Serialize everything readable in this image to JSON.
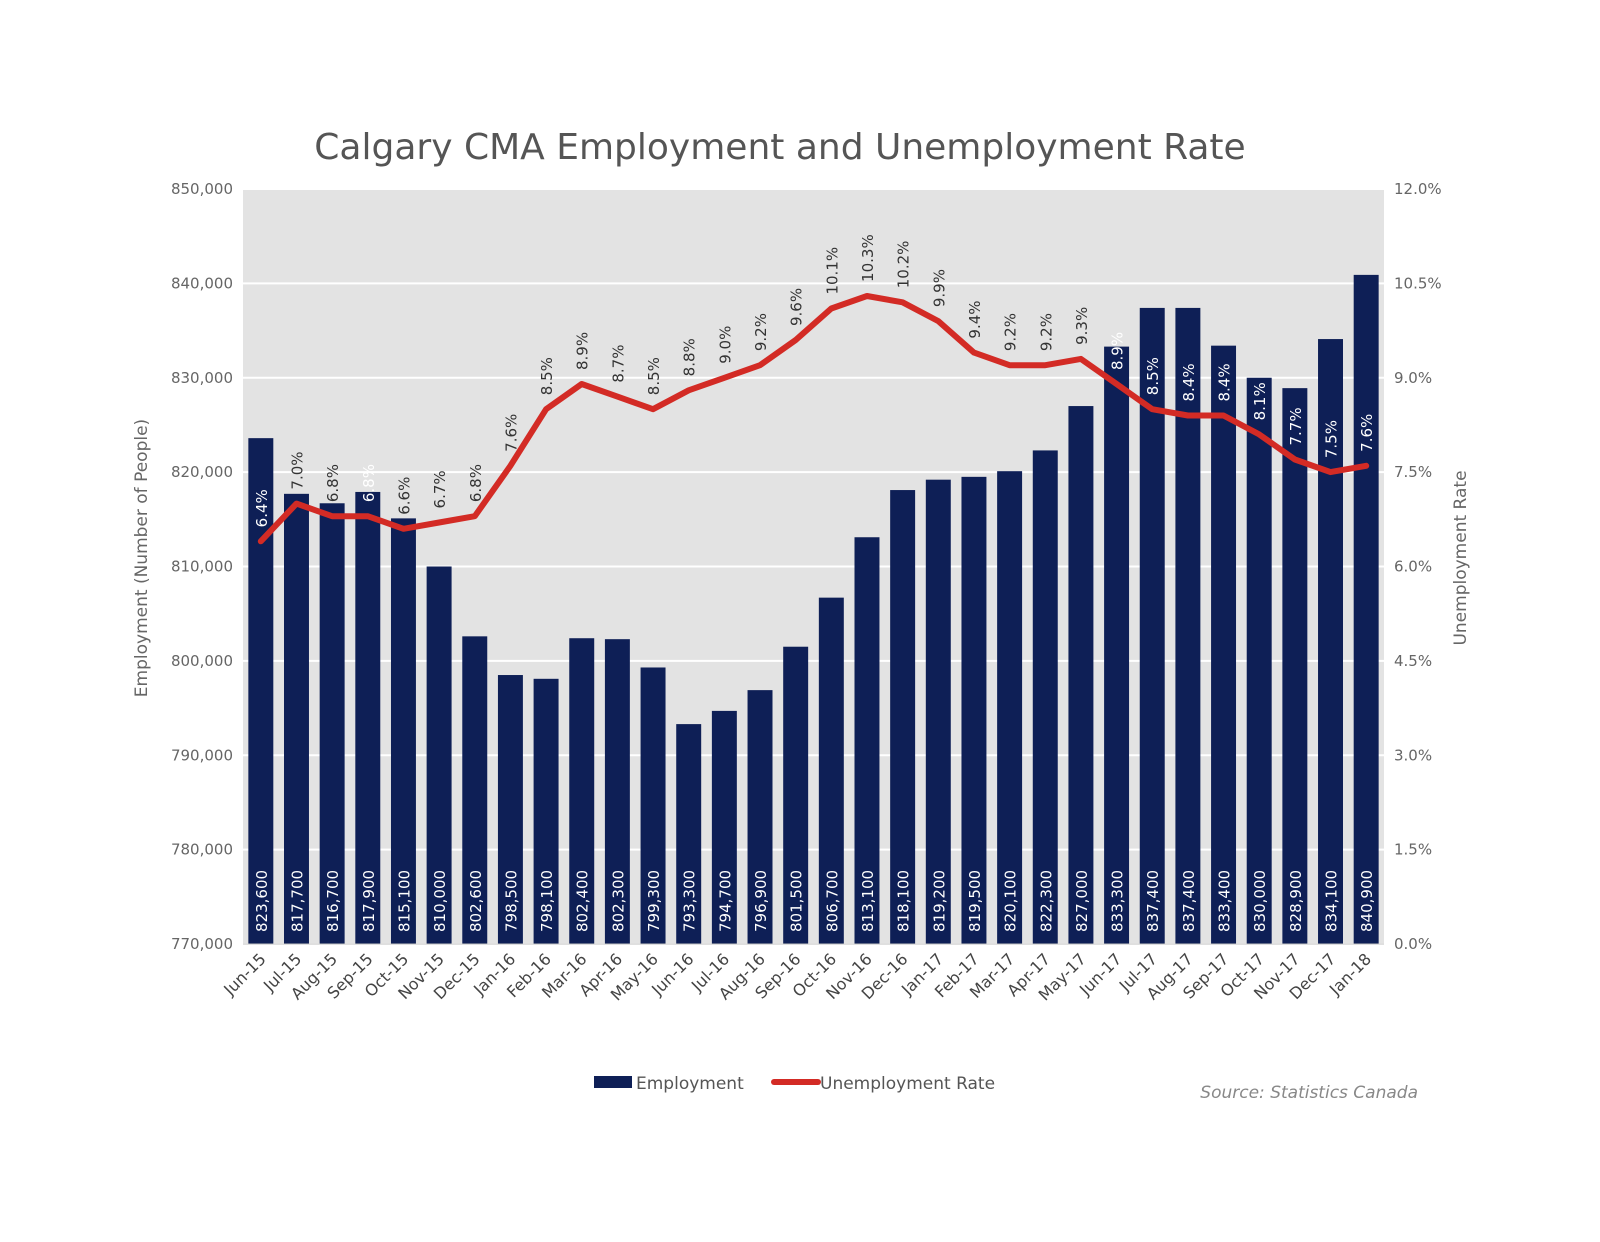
{
  "chart_data": {
    "type": "bar",
    "title": "Calgary CMA Employment and Unemployment Rate",
    "xlabel": "",
    "ylabel": "Employment (Number of People)",
    "y2label": "Unemployment Rate",
    "ylim": [
      770000,
      850000
    ],
    "y2lim": [
      0,
      12
    ],
    "yticks": [
      "770,000",
      "780,000",
      "790,000",
      "800,000",
      "810,000",
      "820,000",
      "830,000",
      "840,000",
      "850,000"
    ],
    "y2ticks": [
      "0.0%",
      "1.5%",
      "3.0%",
      "4.5%",
      "6.0%",
      "7.5%",
      "9.0%",
      "10.5%",
      "12.0%"
    ],
    "grid": true,
    "categories": [
      "Jun-15",
      "Jul-15",
      "Aug-15",
      "Sep-15",
      "Oct-15",
      "Nov-15",
      "Dec-15",
      "Jan-16",
      "Feb-16",
      "Mar-16",
      "Apr-16",
      "May-16",
      "Jun-16",
      "Jul-16",
      "Aug-16",
      "Sep-16",
      "Oct-16",
      "Nov-16",
      "Dec-16",
      "Jan-17",
      "Feb-17",
      "Mar-17",
      "Apr-17",
      "May-17",
      "Jun-17",
      "Jul-17",
      "Aug-17",
      "Sep-17",
      "Oct-17",
      "Nov-17",
      "Dec-17",
      "Jan-18"
    ],
    "series": [
      {
        "name": "Employment",
        "type": "bar",
        "axis": "left",
        "color": "#0e1f56",
        "values": [
          823600,
          817700,
          816700,
          817900,
          815100,
          810000,
          802600,
          798500,
          798100,
          802400,
          802300,
          799300,
          793300,
          794700,
          796900,
          801500,
          806700,
          813100,
          818100,
          819200,
          819500,
          820100,
          822300,
          827000,
          833300,
          837400,
          837400,
          833400,
          830000,
          828900,
          834100,
          840900
        ],
        "labels": [
          "823,600",
          "817,700",
          "816,700",
          "817,900",
          "815,100",
          "810,000",
          "802,600",
          "798,500",
          "798,100",
          "802,400",
          "802,300",
          "799,300",
          "793,300",
          "794,700",
          "796,900",
          "801,500",
          "806,700",
          "813,100",
          "818,100",
          "819,200",
          "819,500",
          "820,100",
          "822,300",
          "827,000",
          "833,300",
          "837,400",
          "837,400",
          "833,400",
          "830,000",
          "828,900",
          "834,100",
          "840,900"
        ]
      },
      {
        "name": "Unemployment Rate",
        "type": "line",
        "axis": "right",
        "color": "#d32b25",
        "values": [
          6.4,
          7.0,
          6.8,
          6.8,
          6.6,
          6.7,
          6.8,
          7.6,
          8.5,
          8.9,
          8.7,
          8.5,
          8.8,
          9.0,
          9.2,
          9.6,
          10.1,
          10.3,
          10.2,
          9.9,
          9.4,
          9.2,
          9.2,
          9.3,
          8.9,
          8.5,
          8.4,
          8.4,
          8.1,
          7.7,
          7.5,
          7.6
        ],
        "labels": [
          "6.4%",
          "7.0%",
          "6.8%",
          "6.8%",
          "6.6%",
          "6.7%",
          "6.8%",
          "7.6%",
          "8.5%",
          "8.9%",
          "8.7%",
          "8.5%",
          "8.8%",
          "9.0%",
          "9.2%",
          "9.6%",
          "10.1%",
          "10.3%",
          "10.2%",
          "9.9%",
          "9.4%",
          "9.2%",
          "9.2%",
          "9.3%",
          "8.9%",
          "8.5%",
          "8.4%",
          "8.4%",
          "8.1%",
          "7.7%",
          "7.5%",
          "7.6%"
        ]
      }
    ],
    "legend_position": "bottom-center",
    "plot_background": "#e3e3e3"
  },
  "legend": {
    "employment": "Employment",
    "unemployment_rate": "Unemployment Rate"
  },
  "source": "Source: Statistics Canada"
}
